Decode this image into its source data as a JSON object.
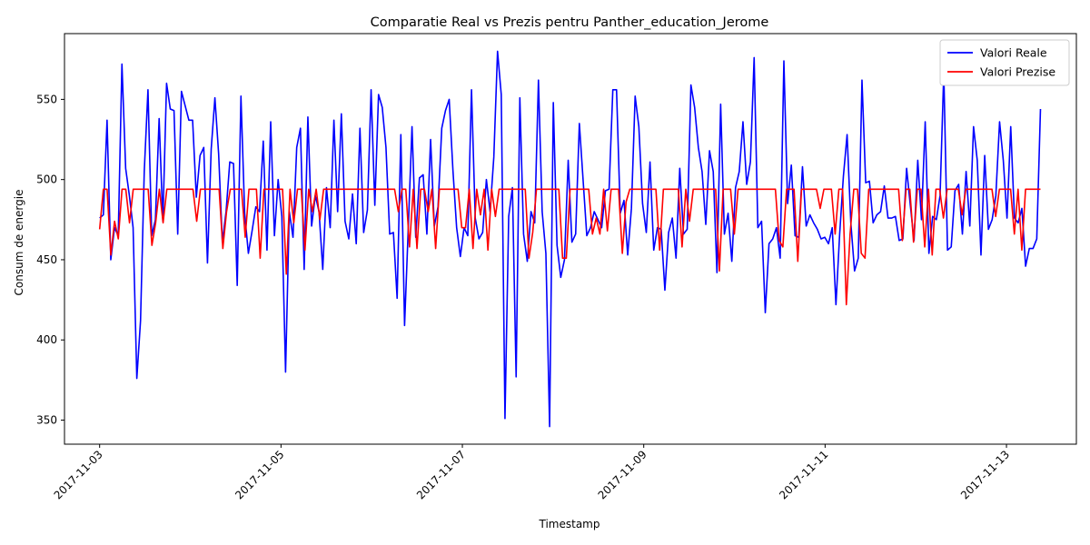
{
  "chart_data": {
    "type": "line",
    "title": "Comparatie Real vs Prezis pentru Panther_education_Jerome",
    "xlabel": "Timestamp",
    "ylabel": "Consum de energie",
    "x_tick_labels": [
      "2017-11-03",
      "2017-11-05",
      "2017-11-07",
      "2017-11-09",
      "2017-11-11",
      "2017-11-13"
    ],
    "y_ticks": [
      350,
      400,
      450,
      500,
      550
    ],
    "ylim": [
      335,
      591
    ],
    "xlim": [
      "2017-11-02T14:42",
      "2017-11-13T18:30"
    ],
    "x_start": "2017-11-03T00:00",
    "x_end": "2017-11-13T09:00",
    "grid": false,
    "legend_position": "top-right",
    "series": [
      {
        "name": "Valori Reale",
        "color": "#0000ff",
        "values": [
          476,
          478,
          537,
          450,
          470,
          465,
          572,
          507,
          490,
          470,
          376,
          412,
          505,
          556,
          465,
          475,
          538,
          474,
          560,
          544,
          543,
          466,
          555,
          546,
          537,
          537,
          489,
          515,
          520,
          448,
          519,
          551,
          516,
          461,
          480,
          511,
          510,
          434,
          552,
          479,
          454,
          468,
          483,
          480,
          524,
          456,
          536,
          465,
          500,
          477,
          380,
          480,
          464,
          520,
          532,
          444,
          539,
          471,
          490,
          480,
          444,
          495,
          470,
          537,
          480,
          541,
          474,
          463,
          491,
          460,
          532,
          467,
          481,
          556,
          484,
          553,
          545,
          520,
          466,
          467,
          426,
          528,
          409,
          470,
          533,
          464,
          501,
          503,
          466,
          525,
          471,
          483,
          532,
          543,
          550,
          506,
          470,
          452,
          470,
          465,
          556,
          476,
          463,
          467,
          500,
          480,
          514,
          580,
          553,
          351,
          477,
          495,
          377,
          551,
          466,
          449,
          480,
          473,
          562,
          480,
          454,
          346,
          548,
          459,
          439,
          450,
          512,
          461,
          466,
          535,
          500,
          465,
          470,
          480,
          475,
          470,
          493,
          494,
          556,
          556,
          479,
          487,
          453,
          482,
          552,
          533,
          485,
          467,
          511,
          456,
          470,
          469,
          431,
          467,
          476,
          451,
          507,
          466,
          469,
          559,
          545,
          520,
          505,
          472,
          518,
          505,
          442,
          547,
          466,
          479,
          449,
          495,
          505,
          536,
          497,
          511,
          576,
          470,
          474,
          417,
          460,
          463,
          470,
          451,
          574,
          485,
          509,
          465,
          464,
          508,
          471,
          478,
          473,
          469,
          463,
          464,
          460,
          470,
          422,
          466,
          502,
          528,
          473,
          443,
          451,
          562,
          498,
          499,
          473,
          478,
          480,
          496,
          476,
          476,
          477,
          462,
          463,
          507,
          484,
          462,
          512,
          475,
          536,
          454,
          477,
          475,
          490,
          567,
          456,
          458,
          493,
          497,
          466,
          505,
          471,
          533,
          512,
          453,
          515,
          469,
          475,
          490,
          536,
          512,
          476,
          533,
          476,
          473,
          482,
          446,
          457,
          457,
          463,
          544
        ]
      },
      {
        "name": "Valori Prezise",
        "color": "#ff0000",
        "values": [
          469,
          494,
          494,
          453,
          474,
          463,
          494,
          494,
          473,
          494,
          494,
          494,
          494,
          494,
          459,
          473,
          494,
          473,
          494,
          494,
          494,
          494,
          494,
          494,
          494,
          494,
          474,
          494,
          494,
          494,
          494,
          494,
          494,
          457,
          480,
          494,
          494,
          494,
          494,
          464,
          494,
          494,
          494,
          451,
          494,
          494,
          494,
          494,
          494,
          494,
          441,
          494,
          473,
          494,
          494,
          456,
          494,
          480,
          494,
          475,
          494,
          494,
          494,
          494,
          494,
          494,
          494,
          494,
          494,
          494,
          494,
          494,
          494,
          494,
          494,
          494,
          494,
          494,
          494,
          494,
          480,
          494,
          494,
          458,
          494,
          457,
          494,
          494,
          480,
          494,
          457,
          494,
          494,
          494,
          494,
          494,
          494,
          470,
          470,
          494,
          457,
          494,
          478,
          494,
          456,
          494,
          477,
          494,
          494,
          494,
          494,
          494,
          494,
          494,
          494,
          451,
          467,
          494,
          494,
          494,
          494,
          494,
          494,
          494,
          451,
          451,
          494,
          494,
          494,
          494,
          494,
          494,
          466,
          476,
          466,
          494,
          468,
          494,
          494,
          494,
          454,
          486,
          494,
          494,
          494,
          494,
          494,
          494,
          494,
          494,
          456,
          494,
          494,
          494,
          494,
          494,
          458,
          494,
          474,
          494,
          494,
          494,
          494,
          494,
          494,
          494,
          443,
          494,
          494,
          494,
          466,
          494,
          494,
          494,
          494,
          494,
          494,
          494,
          494,
          494,
          494,
          494,
          462,
          458,
          494,
          494,
          494,
          449,
          494,
          494,
          494,
          494,
          494,
          482,
          494,
          494,
          494,
          466,
          494,
          494,
          422,
          466,
          494,
          494,
          454,
          451,
          494,
          494,
          494,
          494,
          494,
          494,
          494,
          494,
          494,
          462,
          494,
          494,
          461,
          494,
          494,
          458,
          494,
          453,
          494,
          494,
          476,
          494,
          494,
          494,
          494,
          478,
          494,
          494,
          494,
          494,
          494,
          494,
          494,
          494,
          477,
          494,
          494,
          494,
          494,
          466,
          494,
          456,
          494,
          494,
          494,
          494,
          494
        ]
      }
    ]
  }
}
